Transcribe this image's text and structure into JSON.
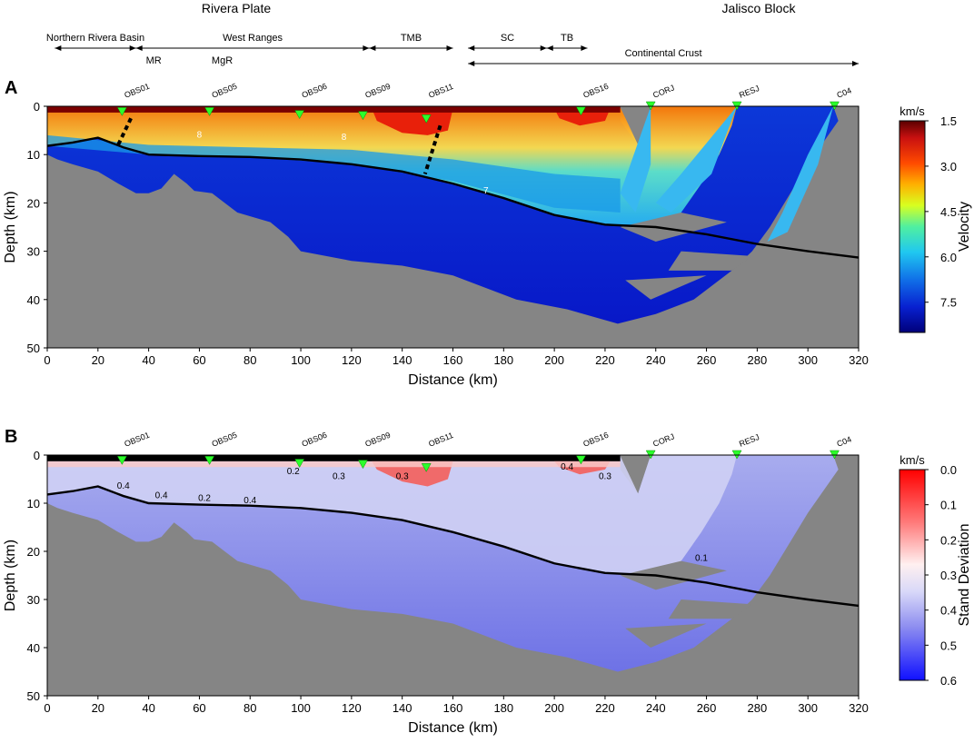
{
  "header": {
    "left_plate": "Rivera Plate",
    "right_block": "Jalisco Block"
  },
  "regions": [
    {
      "label": "Northern Rivera Basin",
      "x_start": 3,
      "x_end": 35
    },
    {
      "label": "West Ranges",
      "x_start": 35,
      "x_end": 127
    },
    {
      "label": "TMB",
      "x_start": 127,
      "x_end": 160
    },
    {
      "label": "SC",
      "x_start": 166,
      "x_end": 197
    },
    {
      "label": "TB",
      "x_start": 197,
      "x_end": 213
    },
    {
      "label": "Continental Crust",
      "x_start": 166,
      "x_end": 320
    }
  ],
  "sublabels": [
    {
      "label": "MR",
      "x": 42
    },
    {
      "label": "MgR",
      "x": 69
    }
  ],
  "stations": [
    {
      "name": "OBS01",
      "x": 29.5,
      "depth": 1.2
    },
    {
      "name": "OBS05",
      "x": 64,
      "depth": 1.2
    },
    {
      "name": "OBS06",
      "x": 99.5,
      "depth": 1.8
    },
    {
      "name": "OBS09",
      "x": 124.5,
      "depth": 2.0
    },
    {
      "name": "OBS11",
      "x": 149.5,
      "depth": 2.7
    },
    {
      "name": "OBS16",
      "x": 210.5,
      "depth": 1.1
    },
    {
      "name": "CORJ",
      "x": 238,
      "depth": -0.2
    },
    {
      "name": "RESJ",
      "x": 272,
      "depth": -0.2
    },
    {
      "name": "C04",
      "x": 310.5,
      "depth": -0.2
    }
  ],
  "chart_data": [
    {
      "type": "heatmap",
      "panel": "A",
      "x": {
        "label": "Distance (km)",
        "range": [
          0,
          320
        ],
        "ticks": [
          0,
          20,
          40,
          60,
          80,
          100,
          120,
          140,
          160,
          180,
          200,
          220,
          240,
          260,
          280,
          300,
          320
        ]
      },
      "y": {
        "label": "Depth (km)",
        "range": [
          0,
          50
        ],
        "ticks": [
          0,
          10,
          20,
          30,
          40,
          50
        ],
        "inverted": true
      },
      "colorbar": {
        "label": "Velocity",
        "unit": "km/s",
        "range": [
          1.5,
          8.5
        ],
        "ticks": [
          "1.5",
          "3.0",
          "4.5",
          "6.0",
          "7.5"
        ],
        "colormap": "rainbow (red=slow, blue=fast)"
      },
      "contour_labels": [
        "8",
        "8",
        "7"
      ],
      "moho_line": [
        [
          0,
          8.2
        ],
        [
          10,
          7.5
        ],
        [
          20,
          6.5
        ],
        [
          30,
          8.5
        ],
        [
          40,
          10
        ],
        [
          60,
          10.3
        ],
        [
          80,
          10.5
        ],
        [
          100,
          11
        ],
        [
          120,
          12
        ],
        [
          140,
          13.5
        ],
        [
          160,
          16
        ],
        [
          180,
          19
        ],
        [
          200,
          22.5
        ],
        [
          220,
          24.5
        ],
        [
          240,
          25
        ],
        [
          260,
          26.5
        ],
        [
          280,
          28.5
        ],
        [
          300,
          30
        ],
        [
          320,
          31.3
        ]
      ],
      "faults": [
        {
          "from": [
            33,
            2.5
          ],
          "to": [
            27.5,
            8.5
          ]
        },
        {
          "from": [
            155,
            4
          ],
          "to": [
            149,
            14
          ]
        }
      ],
      "grid": false,
      "background": "gray (unsampled)"
    },
    {
      "type": "heatmap",
      "panel": "B",
      "x": {
        "label": "Distance (km)",
        "range": [
          0,
          320
        ],
        "ticks": [
          0,
          20,
          40,
          60,
          80,
          100,
          120,
          140,
          160,
          180,
          200,
          220,
          240,
          260,
          280,
          300,
          320
        ]
      },
      "y": {
        "label": "Depth (km)",
        "range": [
          0,
          50
        ],
        "ticks": [
          0,
          10,
          20,
          30,
          40,
          50
        ],
        "inverted": true
      },
      "colorbar": {
        "label": "Stand Deviation",
        "unit": "km/s",
        "range": [
          0.0,
          0.6
        ],
        "ticks": [
          "0.0",
          "0.1",
          "0.2",
          "0.3",
          "0.4",
          "0.5",
          "0.6"
        ],
        "colormap": "red-white-blue"
      },
      "contour_labels": [
        "0.2",
        "0.2",
        "0.3",
        "0.3",
        "0.3",
        "0.4",
        "0.4",
        "0.4",
        "0.4",
        "0.1"
      ],
      "moho_line": [
        [
          0,
          8.2
        ],
        [
          10,
          7.5
        ],
        [
          20,
          6.5
        ],
        [
          30,
          8.5
        ],
        [
          40,
          10
        ],
        [
          60,
          10.3
        ],
        [
          80,
          10.5
        ],
        [
          100,
          11
        ],
        [
          120,
          12
        ],
        [
          140,
          13.5
        ],
        [
          160,
          16
        ],
        [
          180,
          19
        ],
        [
          200,
          22.5
        ],
        [
          220,
          24.5
        ],
        [
          240,
          25
        ],
        [
          260,
          26.5
        ],
        [
          280,
          28.5
        ],
        [
          300,
          30
        ],
        [
          320,
          31.3
        ]
      ],
      "grid": false,
      "background": "gray (unsampled)"
    }
  ],
  "panel_letters": [
    "A",
    "B"
  ],
  "colors": {
    "background": "#858585",
    "moho": "#000000",
    "station": "#2bff2b",
    "water": "#000000"
  }
}
